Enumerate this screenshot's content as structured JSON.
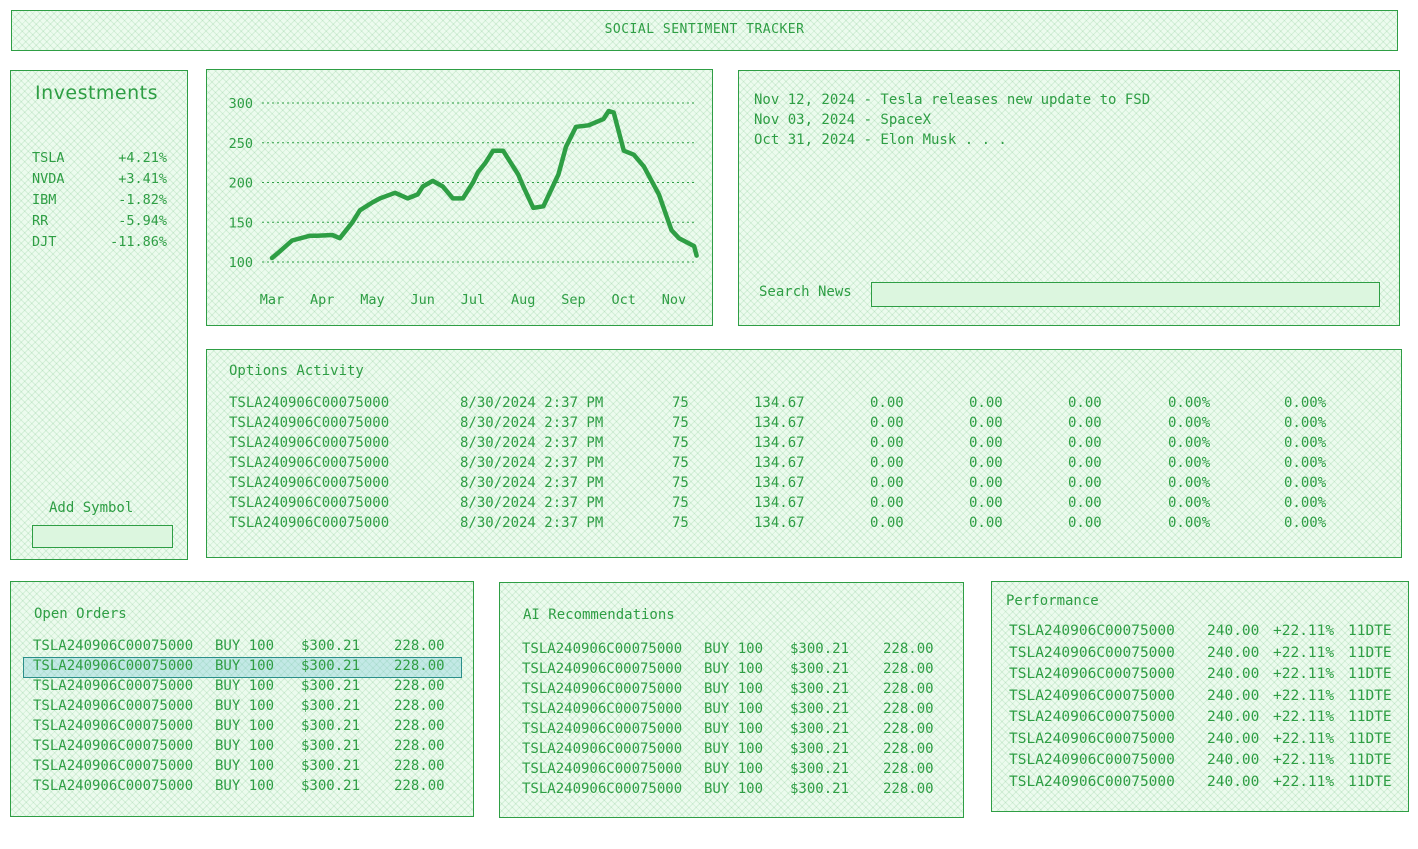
{
  "app": {
    "title": "SOCIAL SENTIMENT TRACKER"
  },
  "colors": {
    "accent": "#2e9e44",
    "panel_fill": "#ecfbee",
    "selected_row": "#9fd6dc"
  },
  "investments": {
    "title": "Investments",
    "items": [
      {
        "symbol": "TSLA",
        "change": "+4.21%"
      },
      {
        "symbol": "NVDA",
        "change": "+3.41%"
      },
      {
        "symbol": "IBM",
        "change": "-1.82%"
      },
      {
        "symbol": "RR",
        "change": "-5.94%"
      },
      {
        "symbol": "DJT",
        "change": "-11.86%"
      }
    ],
    "add_symbol_label": "Add Symbol",
    "add_symbol_value": ""
  },
  "chart_data": {
    "type": "line",
    "title": "",
    "xlabel": "",
    "ylabel": "",
    "x_ticks": [
      "Mar",
      "Apr",
      "May",
      "Jun",
      "Jul",
      "Aug",
      "Sep",
      "Oct",
      "Nov"
    ],
    "y_ticks": [
      "300",
      "250",
      "200",
      "150",
      "100"
    ],
    "ylim": [
      100,
      300
    ],
    "grid": "horizontal dotted",
    "series": [
      {
        "x": [
          0,
          0.15,
          0.4,
          0.75,
          0.9,
          1.2,
          1.35,
          1.6,
          1.75,
          2.0,
          2.15,
          2.45,
          2.7,
          2.9,
          3.0,
          3.2,
          3.4,
          3.6,
          3.8,
          4.0,
          4.1,
          4.25,
          4.4,
          4.6,
          4.9,
          5.0,
          5.2,
          5.4,
          5.7,
          5.85,
          6.05,
          6.3,
          6.6,
          6.7,
          6.8,
          7.0,
          7.2,
          7.4,
          7.7,
          7.95,
          8.1,
          8.4,
          8.45
        ],
        "values": [
          105,
          113,
          127,
          133,
          133,
          134,
          130,
          150,
          165,
          175,
          180,
          187,
          180,
          185,
          195,
          202,
          195,
          180,
          180,
          200,
          213,
          225,
          240,
          240,
          210,
          195,
          168,
          170,
          210,
          245,
          270,
          272,
          280,
          290,
          288,
          240,
          235,
          220,
          185,
          140,
          130,
          120,
          108
        ]
      }
    ]
  },
  "news": {
    "items": [
      "Nov 12, 2024 - Tesla releases new update to FSD",
      "Nov 03, 2024 - SpaceX",
      "Oct 31, 2024 - Elon Musk . . ."
    ],
    "search_label": "Search News",
    "search_value": ""
  },
  "options_activity": {
    "title": "Options Activity",
    "rows": [
      [
        "TSLA240906C00075000",
        "8/30/2024 2:37 PM",
        "75",
        "134.67",
        "0.00",
        "0.00",
        "0.00",
        "0.00%",
        "0.00%"
      ],
      [
        "TSLA240906C00075000",
        "8/30/2024 2:37 PM",
        "75",
        "134.67",
        "0.00",
        "0.00",
        "0.00",
        "0.00%",
        "0.00%"
      ],
      [
        "TSLA240906C00075000",
        "8/30/2024 2:37 PM",
        "75",
        "134.67",
        "0.00",
        "0.00",
        "0.00",
        "0.00%",
        "0.00%"
      ],
      [
        "TSLA240906C00075000",
        "8/30/2024 2:37 PM",
        "75",
        "134.67",
        "0.00",
        "0.00",
        "0.00",
        "0.00%",
        "0.00%"
      ],
      [
        "TSLA240906C00075000",
        "8/30/2024 2:37 PM",
        "75",
        "134.67",
        "0.00",
        "0.00",
        "0.00",
        "0.00%",
        "0.00%"
      ],
      [
        "TSLA240906C00075000",
        "8/30/2024 2:37 PM",
        "75",
        "134.67",
        "0.00",
        "0.00",
        "0.00",
        "0.00%",
        "0.00%"
      ],
      [
        "TSLA240906C00075000",
        "8/30/2024 2:37 PM",
        "75",
        "134.67",
        "0.00",
        "0.00",
        "0.00",
        "0.00%",
        "0.00%"
      ]
    ]
  },
  "open_orders": {
    "title": "Open Orders",
    "selected_index": 1,
    "rows": [
      [
        "TSLA240906C00075000",
        "BUY 100",
        "$300.21",
        "228.00"
      ],
      [
        "TSLA240906C00075000",
        "BUY 100",
        "$300.21",
        "228.00"
      ],
      [
        "TSLA240906C00075000",
        "BUY 100",
        "$300.21",
        "228.00"
      ],
      [
        "TSLA240906C00075000",
        "BUY 100",
        "$300.21",
        "228.00"
      ],
      [
        "TSLA240906C00075000",
        "BUY 100",
        "$300.21",
        "228.00"
      ],
      [
        "TSLA240906C00075000",
        "BUY 100",
        "$300.21",
        "228.00"
      ],
      [
        "TSLA240906C00075000",
        "BUY 100",
        "$300.21",
        "228.00"
      ],
      [
        "TSLA240906C00075000",
        "BUY 100",
        "$300.21",
        "228.00"
      ]
    ]
  },
  "ai_recommendations": {
    "title": "AI Recommendations",
    "rows": [
      [
        "TSLA240906C00075000",
        "BUY 100",
        "$300.21",
        "228.00"
      ],
      [
        "TSLA240906C00075000",
        "BUY 100",
        "$300.21",
        "228.00"
      ],
      [
        "TSLA240906C00075000",
        "BUY 100",
        "$300.21",
        "228.00"
      ],
      [
        "TSLA240906C00075000",
        "BUY 100",
        "$300.21",
        "228.00"
      ],
      [
        "TSLA240906C00075000",
        "BUY 100",
        "$300.21",
        "228.00"
      ],
      [
        "TSLA240906C00075000",
        "BUY 100",
        "$300.21",
        "228.00"
      ],
      [
        "TSLA240906C00075000",
        "BUY 100",
        "$300.21",
        "228.00"
      ],
      [
        "TSLA240906C00075000",
        "BUY 100",
        "$300.21",
        "228.00"
      ]
    ]
  },
  "performance": {
    "title": "Performance",
    "rows": [
      [
        "TSLA240906C00075000",
        "240.00",
        "+22.11%",
        "11DTE"
      ],
      [
        "TSLA240906C00075000",
        "240.00",
        "+22.11%",
        "11DTE"
      ],
      [
        "TSLA240906C00075000",
        "240.00",
        "+22.11%",
        "11DTE"
      ],
      [
        "TSLA240906C00075000",
        "240.00",
        "+22.11%",
        "11DTE"
      ],
      [
        "TSLA240906C00075000",
        "240.00",
        "+22.11%",
        "11DTE"
      ],
      [
        "TSLA240906C00075000",
        "240.00",
        "+22.11%",
        "11DTE"
      ],
      [
        "TSLA240906C00075000",
        "240.00",
        "+22.11%",
        "11DTE"
      ],
      [
        "TSLA240906C00075000",
        "240.00",
        "+22.11%",
        "11DTE"
      ]
    ]
  }
}
